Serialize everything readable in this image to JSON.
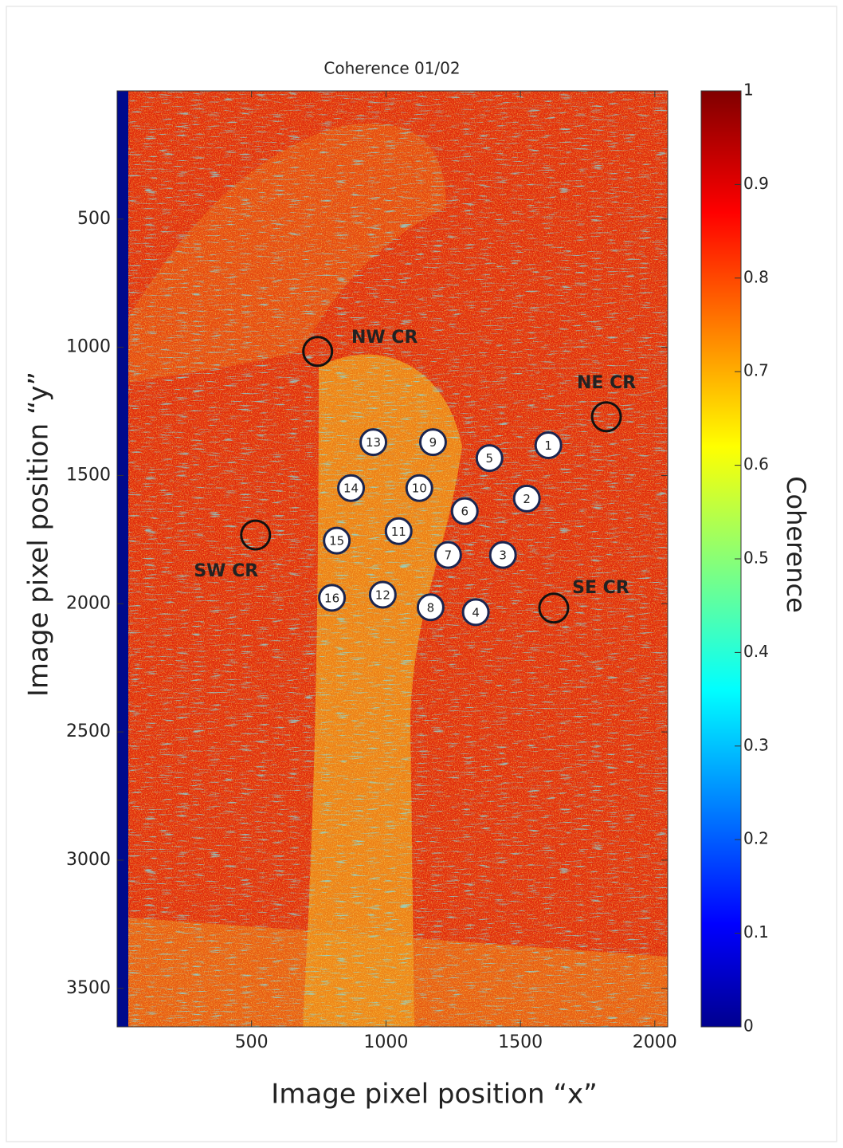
{
  "chart_data": {
    "type": "image",
    "title": "Coherence 01/02",
    "x_label": "Image pixel position “x”",
    "y_label": "Image pixel position “y”",
    "xlim": [
      0,
      2048
    ],
    "ylim": [
      0,
      3650
    ],
    "y_inverted": true,
    "xticks": [
      500,
      1000,
      1500,
      2000
    ],
    "yticks": [
      500,
      1000,
      1500,
      2000,
      2500,
      3000,
      3500
    ],
    "colorbar": {
      "label": "Coherence",
      "lim": [
        0,
        1
      ],
      "ticks": [
        0,
        0.1,
        0.2,
        0.3,
        0.4,
        0.5,
        0.6,
        0.7,
        0.8,
        0.9,
        1
      ]
    },
    "points": [
      {
        "label": "1",
        "x": 1604,
        "y": 1382
      },
      {
        "label": "2",
        "x": 1524,
        "y": 1590
      },
      {
        "label": "3",
        "x": 1435,
        "y": 1810
      },
      {
        "label": "4",
        "x": 1334,
        "y": 2033
      },
      {
        "label": "5",
        "x": 1385,
        "y": 1432
      },
      {
        "label": "6",
        "x": 1293,
        "y": 1639
      },
      {
        "label": "7",
        "x": 1231,
        "y": 1810
      },
      {
        "label": "8",
        "x": 1166,
        "y": 2014
      },
      {
        "label": "9",
        "x": 1175,
        "y": 1370
      },
      {
        "label": "10",
        "x": 1124,
        "y": 1549
      },
      {
        "label": "11",
        "x": 1047,
        "y": 1717
      },
      {
        "label": "12",
        "x": 988,
        "y": 1965
      },
      {
        "label": "13",
        "x": 953,
        "y": 1370
      },
      {
        "label": "14",
        "x": 870,
        "y": 1549
      },
      {
        "label": "15",
        "x": 817,
        "y": 1754
      },
      {
        "label": "16",
        "x": 799,
        "y": 1977
      }
    ],
    "reflectors": [
      {
        "label": "NW CR",
        "x": 746,
        "y": 1016
      },
      {
        "label": "NE CR",
        "x": 1820,
        "y": 1271
      },
      {
        "label": "SW CR",
        "x": 515,
        "y": 1732
      },
      {
        "label": "SE CR",
        "x": 1624,
        "y": 2017
      }
    ]
  }
}
